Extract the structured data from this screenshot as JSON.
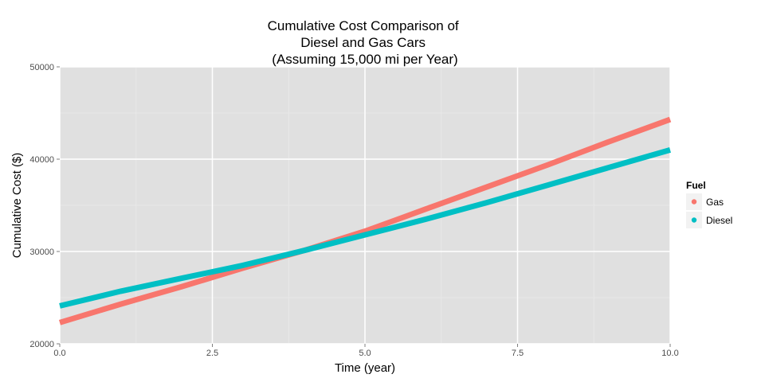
{
  "chart_data": {
    "type": "line",
    "title": "Cumulative Cost Comparison of\nDiesel and Gas Cars\n(Assuming 15,000 mi per Year)",
    "title_lines": [
      "Cumulative Cost Comparison of",
      "Diesel and Gas Cars",
      "(Assuming 15,000 mi per Year)"
    ],
    "xlabel": "Time (year)",
    "ylabel": "Cumulative Cost ($)",
    "xlim": [
      0,
      10
    ],
    "ylim": [
      20000,
      50000
    ],
    "x_ticks": [
      0,
      2.5,
      5,
      7.5,
      10
    ],
    "x_tick_labels": [
      "0.0",
      "2.5",
      "5.0",
      "7.5",
      "10.0"
    ],
    "y_ticks": [
      20000,
      30000,
      40000,
      50000
    ],
    "y_tick_labels": [
      "20000",
      "30000",
      "40000",
      "50000"
    ],
    "grid": true,
    "legend": {
      "title": "Fuel",
      "placement": "right"
    },
    "series": [
      {
        "name": "Gas",
        "color": "#F8766D",
        "x": [
          0,
          1,
          2,
          3,
          4,
          5,
          6,
          7,
          8,
          9,
          10
        ],
        "values": [
          22300,
          24300,
          26200,
          28200,
          30100,
          32200,
          34600,
          37000,
          39400,
          41900,
          44300
        ]
      },
      {
        "name": "Diesel",
        "color": "#00BFC4",
        "x": [
          0,
          1,
          2,
          3,
          4,
          5,
          6,
          7,
          8,
          9,
          10
        ],
        "values": [
          24100,
          25700,
          27100,
          28500,
          30100,
          31800,
          33500,
          35300,
          37200,
          39100,
          41000
        ]
      }
    ]
  }
}
